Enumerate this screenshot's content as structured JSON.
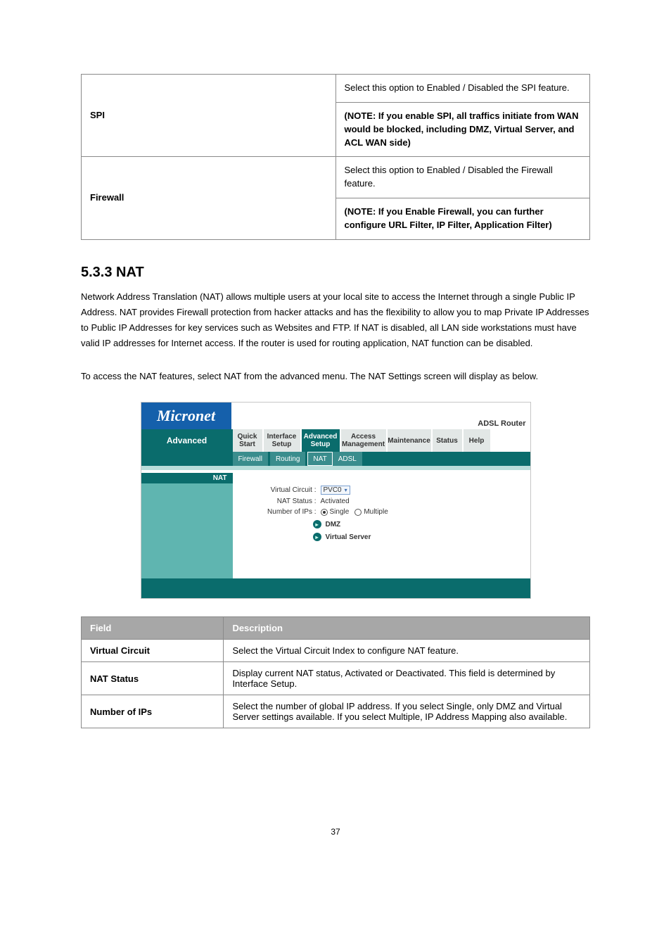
{
  "def_table": {
    "rows": [
      {
        "label": "SPI",
        "desc": "Select this option to Enabled / Disabled the SPI feature."
      },
      {
        "label": "",
        "desc": "(NOTE: If you enable SPI, all traffics initiate from WAN would be blocked, including DMZ, Virtual Server, and ACL WAN side)"
      },
      {
        "label": "Firewall",
        "desc": "Select this option to Enabled / Disabled the Firewall feature."
      },
      {
        "label": "",
        "desc": "(NOTE: If you Enable Firewall, you can further configure URL Filter, IP Filter, Application Filter)"
      }
    ]
  },
  "section": {
    "heading": "5.3.3 NAT",
    "p1": "Network Address Translation (NAT) allows multiple users at your local site to access the Internet through a single Public IP Address. NAT provides Firewall protection from hacker attacks and has the flexibility to allow you to map Private IP Addresses to Public IP Addresses for key services such as Websites and FTP. If NAT is disabled, all LAN side workstations must have valid IP addresses for Internet access. If the router is used for routing application, NAT function can be disabled.",
    "p2": "To access the NAT features, select NAT from the advanced menu. The NAT Settings screen will display as below."
  },
  "router": {
    "brand": "Micronet",
    "device_label": "ADSL Router",
    "left_head": "Advanced",
    "tabs": [
      "Quick\nStart",
      "Interface\nSetup",
      "Advanced\nSetup",
      "Access\nManagement",
      "Maintenance",
      "Status",
      "Help"
    ],
    "active_tab_index": 2,
    "subtabs": [
      "Firewall",
      "Routing",
      "NAT",
      "ADSL"
    ],
    "active_subtab_index": 2,
    "side_label": "NAT",
    "fields": {
      "vc_label": "Virtual Circuit :",
      "vc_value": "PVC0",
      "status_label": "NAT Status :",
      "status_value": "Activated",
      "num_label": "Number of IPs :",
      "num_opts": [
        "Single",
        "Multiple"
      ],
      "num_selected": 0
    },
    "links": [
      "DMZ",
      "Virtual Server"
    ]
  },
  "fd_table": {
    "head": [
      "Field",
      "Description"
    ],
    "rows": [
      {
        "label": "Virtual Circuit",
        "desc": "Select the Virtual Circuit Index to configure NAT feature."
      },
      {
        "label": "NAT Status",
        "desc": "Display current NAT status, Activated or Deactivated. This field is determined by Interface Setup."
      },
      {
        "label": "Number of IPs",
        "desc": "Select the number of global IP address. If you select Single, only DMZ and Virtual Server settings available. If you select Multiple, IP Address Mapping also available."
      }
    ]
  },
  "page_num": "37",
  "colors": {
    "border": "#8a8a8a",
    "header_bg": "#a7a7a7",
    "brand_bg": "#1560ab",
    "router_dark": "#0a6c6c",
    "router_mid": "#3a8d8d",
    "router_light": "#5fb5b0",
    "thin": "#b9dedb"
  }
}
